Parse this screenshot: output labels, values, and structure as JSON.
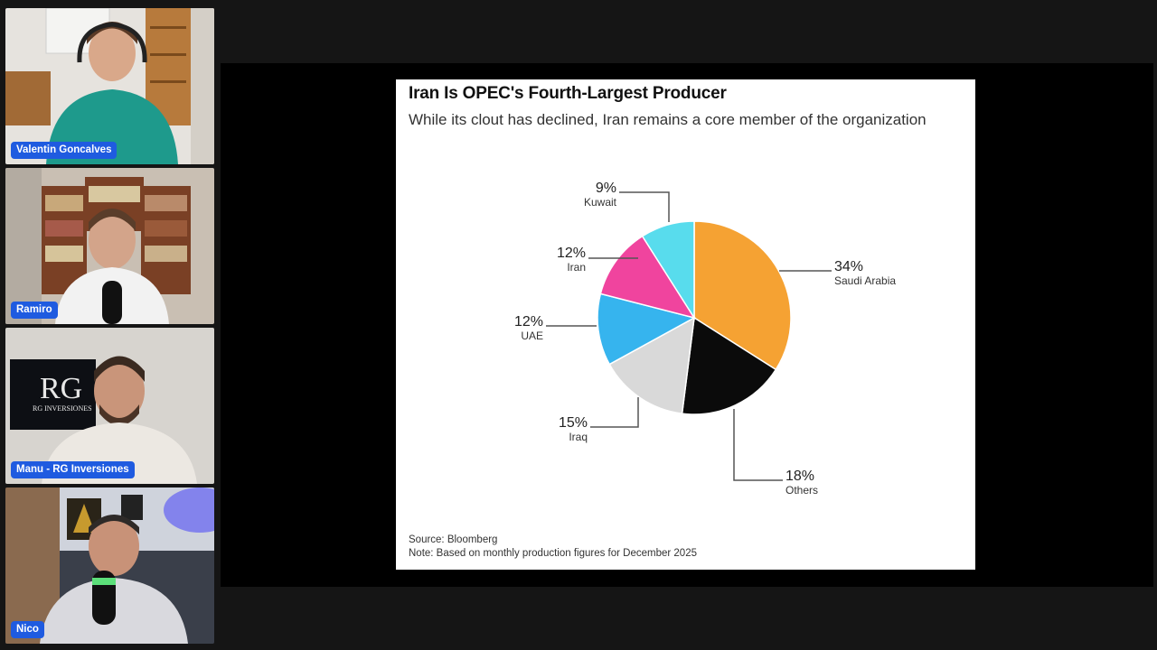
{
  "participants": [
    {
      "name": "Valentin Goncalves"
    },
    {
      "name": "Ramiro"
    },
    {
      "name": "Manu - RG Inversiones"
    },
    {
      "name": "Nico"
    }
  ],
  "screen_share": {
    "logo_text": "RG",
    "logo_sub": "RG INVERSIONES"
  },
  "chart_data": {
    "type": "pie",
    "title": "Iran Is OPEC's Fourth-Largest Producer",
    "subtitle": "While its clout has declined, Iran remains a core member of the organization",
    "slices": [
      {
        "label": "Saudi Arabia",
        "value": 34,
        "pct_label": "34%",
        "color": "#f5a233"
      },
      {
        "label": "Others",
        "value": 18,
        "pct_label": "18%",
        "color": "#0b0b0b"
      },
      {
        "label": "Iraq",
        "value": 15,
        "pct_label": "15%",
        "color": "#d9d9d9"
      },
      {
        "label": "UAE",
        "value": 12,
        "pct_label": "12%",
        "color": "#36b4ee"
      },
      {
        "label": "Iran",
        "value": 12,
        "pct_label": "12%",
        "color": "#f0449e"
      },
      {
        "label": "Kuwait",
        "value": 9,
        "pct_label": "9%",
        "color": "#58dced"
      }
    ],
    "source": "Source: Bloomberg",
    "note": "Note: Based on monthly production figures for December 2025"
  }
}
